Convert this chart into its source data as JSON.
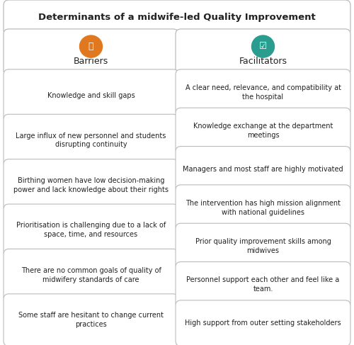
{
  "title": "Determinants of a midwife-led Quality Improvement",
  "title_fontsize": 9.5,
  "barriers_label": "Barriers",
  "facilitators_label": "Facilitators",
  "barriers_color": "#E07820",
  "facilitators_color": "#2A9D8F",
  "box_edge_color": "#BBBBBB",
  "box_bg_color": "#FFFFFF",
  "barriers": [
    "Knowledge and skill gaps",
    "Large influx of new personnel and students\ndisrupting continuity",
    "Birthing women have low decision-making\npower and lack knowledge about their rights",
    "Prioritisation is challenging due to a lack of\nspace, time, and resources",
    "There are no common goals of quality of\nmidwifery standards of care",
    "Some staff are hesitant to change current\npractices"
  ],
  "facilitators": [
    "A clear need, relevance, and compatibility at\nthe hospital",
    "Knowledge exchange at the department\nmeetings",
    "Managers and most staff are highly motivated",
    "The intervention has high mission alignment\nwith national guidelines",
    "Prior quality improvement skills among\nmidwives",
    "Personnel support each other and feel like a\nteam.",
    "High support from outer setting stakeholders"
  ],
  "bg_color": "#FFFFFF",
  "text_color": "#222222",
  "font_size": 7.0,
  "header_font_size": 9.0,
  "fig_width": 5.0,
  "fig_height": 4.87,
  "dpi": 100
}
